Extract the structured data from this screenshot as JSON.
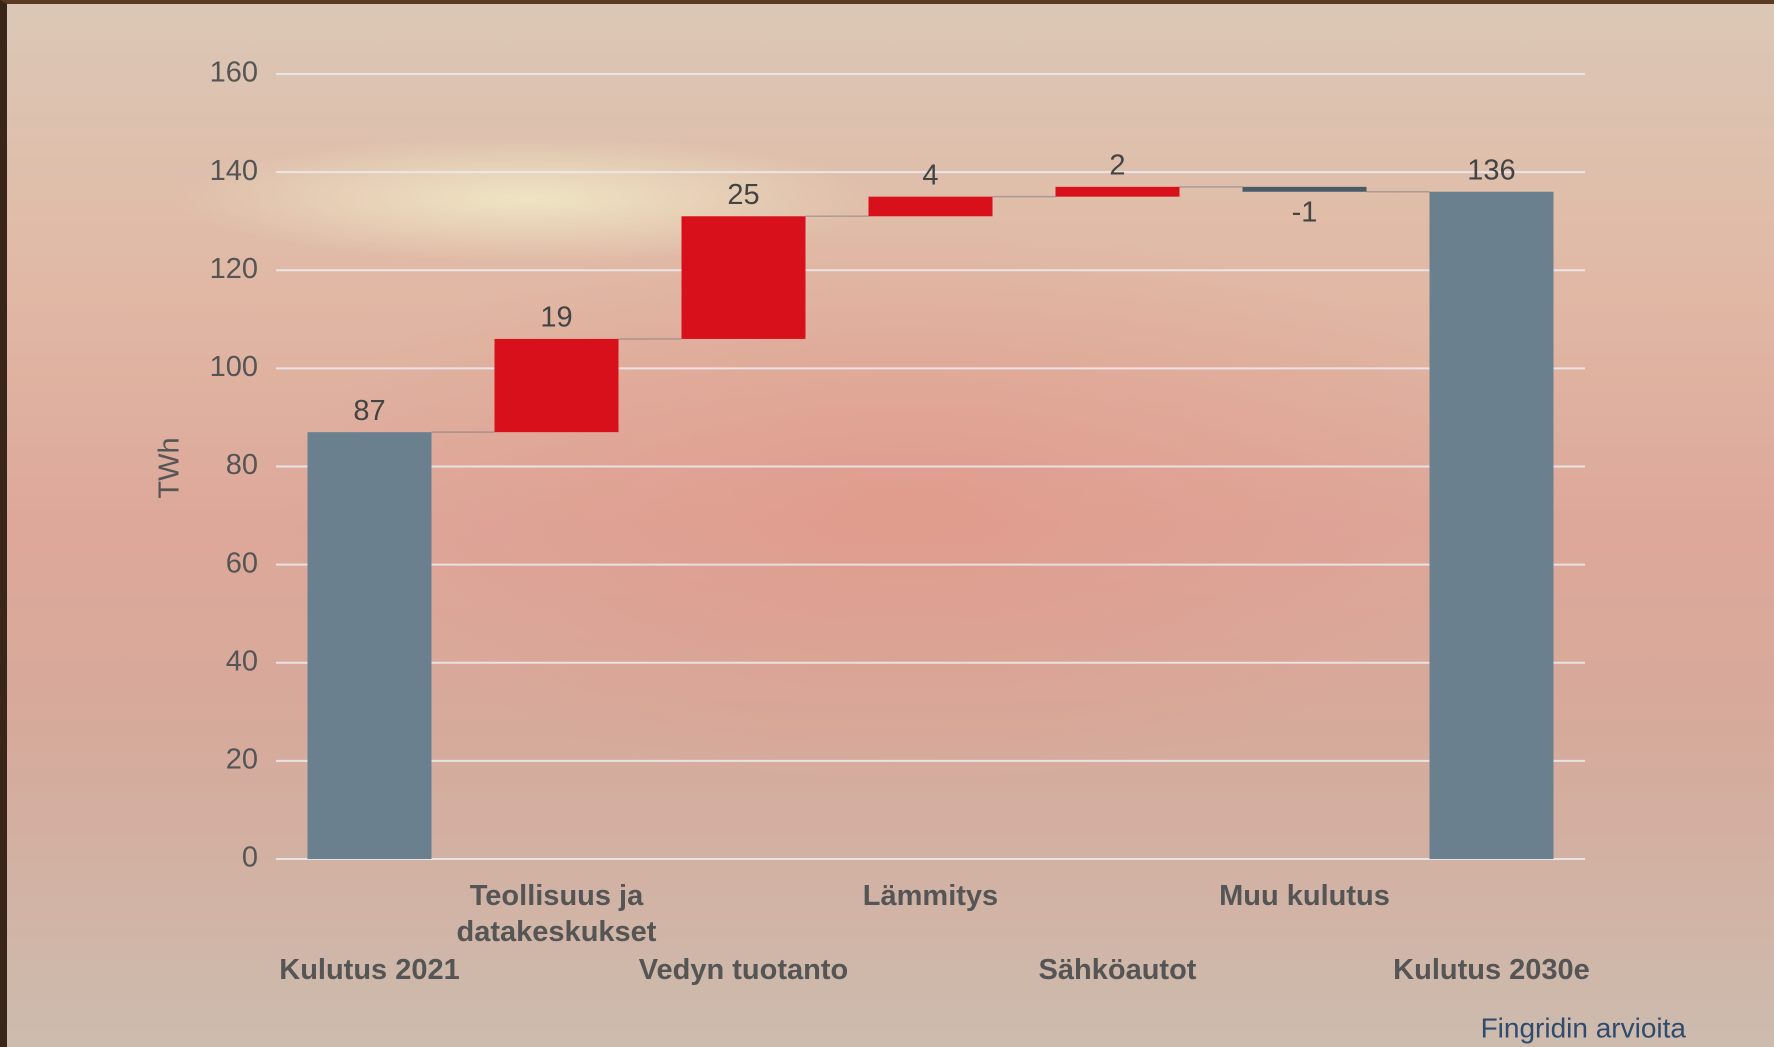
{
  "chart_data": {
    "type": "waterfall",
    "y_label": "TWh",
    "source": "Fingridin arvioita",
    "categories": [
      "Kulutus 2021",
      "Teollisuus ja datakeskukset",
      "Vedyn tuotanto",
      "Lämmitys",
      "Sähköautot",
      "Muu kulutus",
      "Kulutus 2030e"
    ],
    "values": [
      87,
      19,
      25,
      4,
      2,
      -1,
      136
    ],
    "is_total": [
      true,
      false,
      false,
      false,
      false,
      false,
      true
    ],
    "total_color": "#6b808e",
    "increase_color": "#d7101c",
    "decrease_color": "#4a5a66",
    "ylim": [
      0,
      160
    ],
    "yticks": [
      0,
      20,
      40,
      60,
      80,
      100,
      120,
      140,
      160
    ],
    "grid": true
  }
}
